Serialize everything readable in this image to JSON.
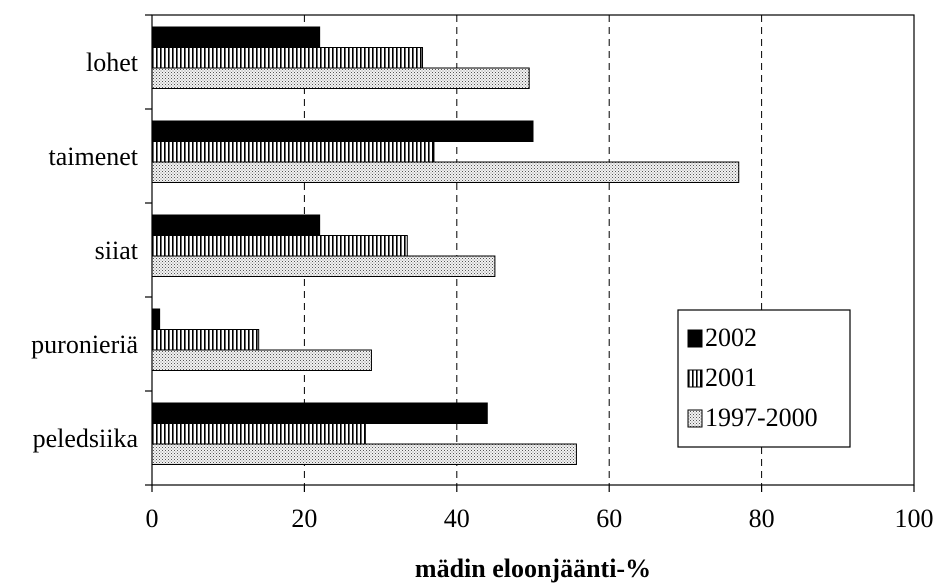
{
  "chart_data": {
    "type": "bar",
    "orientation": "horizontal",
    "title": "",
    "xlabel": "mädin eloonjäänti-%",
    "ylabel": "",
    "xlim": [
      0,
      100
    ],
    "x_ticks": [
      "0",
      "20",
      "40",
      "60",
      "80",
      "100"
    ],
    "grid": "vertical dashed",
    "legend_position": "bottom-right",
    "categories": [
      "lohet",
      "taimenet",
      "siiat",
      "puronieriä",
      "peledsiika"
    ],
    "series": [
      {
        "name": "2002",
        "values": [
          22,
          50,
          22,
          1,
          44
        ],
        "fill": "#000000",
        "pattern": "solid"
      },
      {
        "name": "2001",
        "values": [
          35.5,
          37,
          33.5,
          14,
          28
        ],
        "fill": "#ffffff",
        "pattern": "vertical-stripes"
      },
      {
        "name": "1997-2000",
        "values": [
          49.5,
          77,
          45,
          28.8,
          55.7
        ],
        "fill": "#e6e6e6",
        "pattern": "dots"
      }
    ]
  }
}
